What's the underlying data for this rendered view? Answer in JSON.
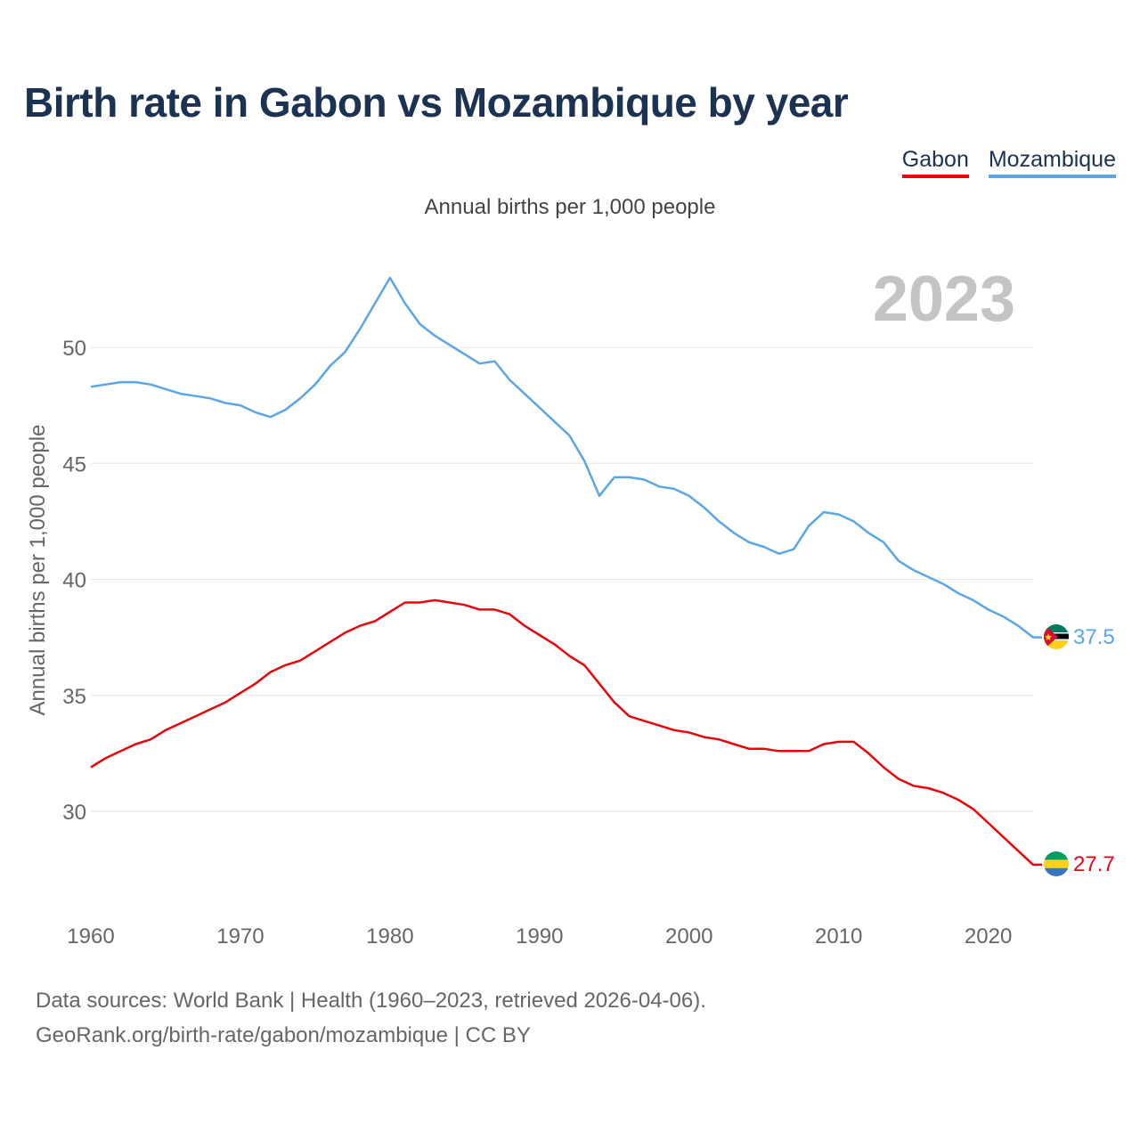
{
  "title": "Birth rate in Gabon vs Mozambique by year",
  "colors": {
    "gabon": "#e8060c",
    "mozambique": "#5aa6e6",
    "title": "#1b3252",
    "year_watermark": "#c4c4c4",
    "grid": "#e6e6e6",
    "axis_text": "#666666"
  },
  "legend": {
    "items": [
      {
        "label": "Gabon"
      },
      {
        "label": "Mozambique"
      }
    ]
  },
  "footer": {
    "source": "Data sources: World Bank | Health (1960–2023, retrieved 2026-04-06).",
    "attribution": "GeoRank.org/birth-rate/gabon/mozambique | CC BY"
  },
  "chart_data": {
    "type": "line",
    "title": "Birth rate in Gabon vs Mozambique by year",
    "subtitle": "Annual births per 1,000 people",
    "ylabel": "Annual births per 1,000 people",
    "xlabel": "",
    "current_year_label": "2023",
    "xlim": [
      1960,
      2023
    ],
    "ylim": [
      26,
      54
    ],
    "x_ticks": [
      1960,
      1970,
      1980,
      1990,
      2000,
      2010,
      2020
    ],
    "y_ticks": [
      30,
      35,
      40,
      45,
      50
    ],
    "grid": true,
    "legend_position": "top-right",
    "x": [
      1960,
      1961,
      1962,
      1963,
      1964,
      1965,
      1966,
      1967,
      1968,
      1969,
      1970,
      1971,
      1972,
      1973,
      1974,
      1975,
      1976,
      1977,
      1978,
      1979,
      1980,
      1981,
      1982,
      1983,
      1984,
      1985,
      1986,
      1987,
      1988,
      1989,
      1990,
      1991,
      1992,
      1993,
      1994,
      1995,
      1996,
      1997,
      1998,
      1999,
      2000,
      2001,
      2002,
      2003,
      2004,
      2005,
      2006,
      2007,
      2008,
      2009,
      2010,
      2011,
      2012,
      2013,
      2014,
      2015,
      2016,
      2017,
      2018,
      2019,
      2020,
      2021,
      2022,
      2023
    ],
    "series": [
      {
        "name": "Gabon",
        "end_label": "27.7",
        "values": [
          31.9,
          32.3,
          32.6,
          32.9,
          33.1,
          33.5,
          33.8,
          34.1,
          34.4,
          34.7,
          35.1,
          35.5,
          36.0,
          36.3,
          36.5,
          36.9,
          37.3,
          37.7,
          38.0,
          38.2,
          38.6,
          39.0,
          39.0,
          39.1,
          39.0,
          38.9,
          38.7,
          38.7,
          38.5,
          38.0,
          37.6,
          37.2,
          36.7,
          36.3,
          35.5,
          34.7,
          34.1,
          33.9,
          33.7,
          33.5,
          33.4,
          33.2,
          33.1,
          32.9,
          32.7,
          32.7,
          32.6,
          32.6,
          32.6,
          32.9,
          33.0,
          33.0,
          32.5,
          31.9,
          31.4,
          31.1,
          31.0,
          30.8,
          30.5,
          30.1,
          29.5,
          28.9,
          28.3,
          27.7
        ]
      },
      {
        "name": "Mozambique",
        "end_label": "37.5",
        "values": [
          48.3,
          48.4,
          48.5,
          48.5,
          48.4,
          48.2,
          48.0,
          47.9,
          47.8,
          47.6,
          47.5,
          47.2,
          47.0,
          47.3,
          47.8,
          48.4,
          49.2,
          49.8,
          50.8,
          51.9,
          53.0,
          51.9,
          51.0,
          50.5,
          50.1,
          49.7,
          49.3,
          49.4,
          48.6,
          48.0,
          47.4,
          46.8,
          46.2,
          45.1,
          43.6,
          44.4,
          44.4,
          44.3,
          44.0,
          43.9,
          43.6,
          43.1,
          42.5,
          42.0,
          41.6,
          41.4,
          41.1,
          41.3,
          42.3,
          42.9,
          42.8,
          42.5,
          42.0,
          41.6,
          40.8,
          40.4,
          40.1,
          39.8,
          39.4,
          39.1,
          38.7,
          38.4,
          38.0,
          37.5
        ]
      }
    ]
  }
}
